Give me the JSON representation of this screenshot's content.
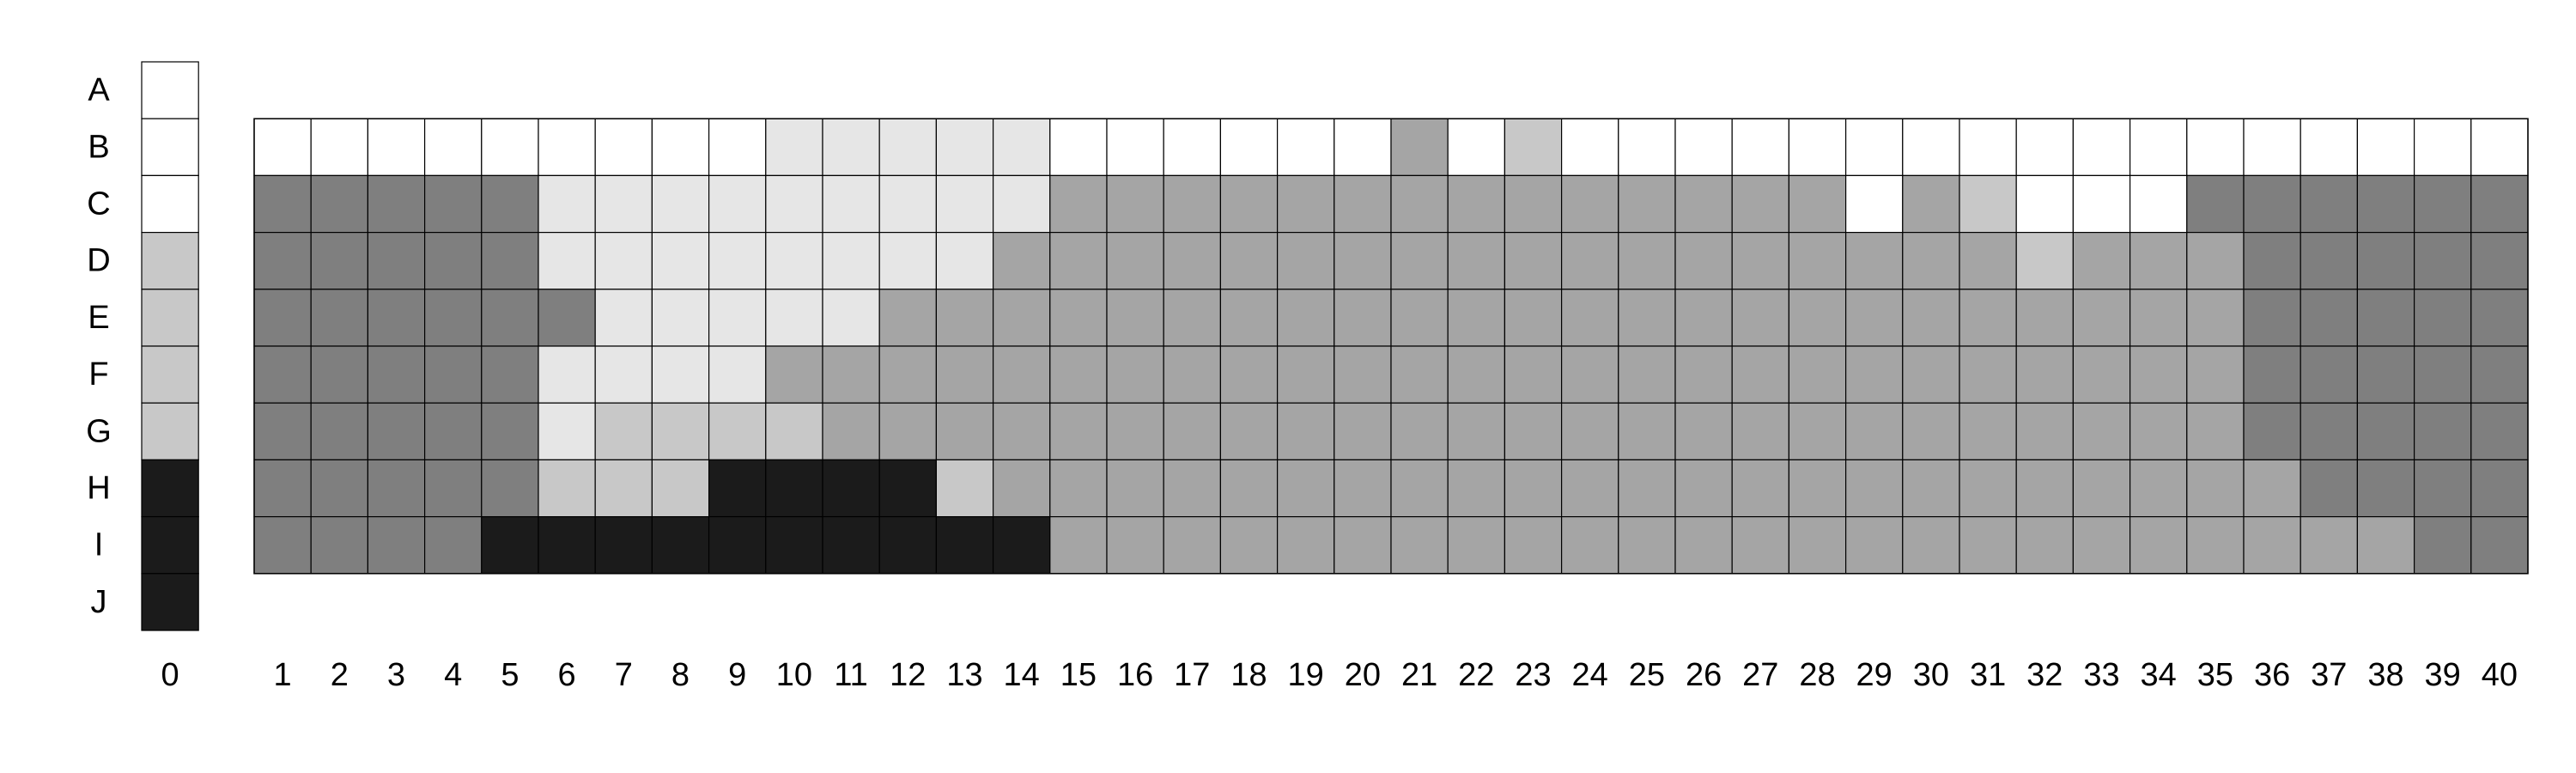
{
  "palette": {
    "W": "#ffffff",
    "L": "#e6e6e6",
    "M": "#c8c8c8",
    "G": "#a5a5a5",
    "D": "#7f7f7f",
    "K": "#1b1b1b"
  },
  "row_labels": [
    "A",
    "B",
    "C",
    "D",
    "E",
    "F",
    "G",
    "H",
    "I",
    "J"
  ],
  "column_zero": {
    "label": "0",
    "cells": [
      "W",
      "W",
      "W",
      "M",
      "M",
      "M",
      "M",
      "K",
      "K",
      "K"
    ]
  },
  "grid": {
    "column_labels": [
      "1",
      "2",
      "3",
      "4",
      "5",
      "6",
      "7",
      "8",
      "9",
      "10",
      "11",
      "12",
      "13",
      "14",
      "15",
      "16",
      "17",
      "18",
      "19",
      "20",
      "21",
      "22",
      "23",
      "24",
      "25",
      "26",
      "27",
      "28",
      "29",
      "30",
      "31",
      "32",
      "33",
      "34",
      "35",
      "36",
      "37",
      "38",
      "39",
      "40"
    ],
    "first_row": "B",
    "rows": [
      "WWWWWWWWWLLLLLWWWWWWGWMWWWWWWWWWWWWWWWWW",
      "DDDDDLLLLLLLLLGGGGGGGGGGGGGGWGMWWWDDDDDD",
      "DDDDDLLLLLLLLGGGGGGGGGGGGGGGGGGMGGGDDDDD",
      "DDDDDDLLLLLGGGGGGGGGGGGGGGGGGGGGGGGDDDDD",
      "DDDDDLLLLGGGGGGGGGGGGGGGGGGGGGGGGGGDDDDD",
      "DDDDDLMMMMGGGGGGGGGGGGGGGGGGGGGGGGGDDDDD",
      "DDDDDMMMKKKKMGGGGGGGGGGGGGGGGGGGGGGGDDDD",
      "DDDDKKKKKKKKKKGGGGGGGGGGGGGGGGGGGGGGGGDD"
    ]
  }
}
